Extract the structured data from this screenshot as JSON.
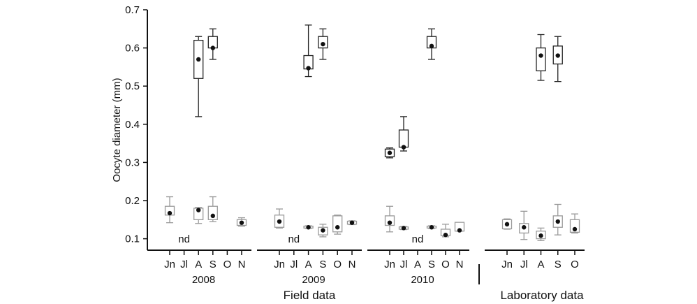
{
  "chart_data": {
    "type": "box",
    "ylabel": "Oocyte diameter (mm)",
    "ylim": [
      0.07,
      0.7
    ],
    "yticks": [
      "0.1",
      "0.2",
      "0.3",
      "0.4",
      "0.5",
      "0.6",
      "0.7"
    ],
    "note_nd": "nd",
    "groups": [
      {
        "id": "2008",
        "label": "2008",
        "section": "field",
        "nd_after": "Jl",
        "months": [
          "Jn",
          "Jl",
          "A",
          "S",
          "O",
          "N"
        ],
        "boxes": [
          {
            "month": "Jn",
            "min": 0.142,
            "q1": 0.162,
            "q3": 0.185,
            "max": 0.21,
            "mean": 0.167,
            "tone": "light"
          },
          {
            "month": "A",
            "min": 0.42,
            "q1": 0.52,
            "q3": 0.62,
            "max": 0.63,
            "mean": 0.57,
            "tone": "dark"
          },
          {
            "month": "A",
            "min": 0.14,
            "q1": 0.15,
            "q3": 0.18,
            "max": 0.182,
            "mean": 0.175,
            "tone": "light"
          },
          {
            "month": "S",
            "min": 0.57,
            "q1": 0.6,
            "q3": 0.63,
            "max": 0.65,
            "mean": 0.6,
            "tone": "dark"
          },
          {
            "month": "S",
            "min": 0.145,
            "q1": 0.15,
            "q3": 0.185,
            "max": 0.21,
            "mean": 0.16,
            "tone": "light"
          },
          {
            "month": "N",
            "min": 0.133,
            "q1": 0.135,
            "q3": 0.15,
            "max": 0.155,
            "mean": 0.142,
            "tone": "light"
          }
        ]
      },
      {
        "id": "2009",
        "label": "2009",
        "section": "field",
        "nd_after": "Jl",
        "months": [
          "Jn",
          "Jl",
          "A",
          "S",
          "O",
          "N"
        ],
        "boxes": [
          {
            "month": "Jn",
            "min": 0.128,
            "q1": 0.13,
            "q3": 0.162,
            "max": 0.178,
            "mean": 0.145,
            "tone": "light"
          },
          {
            "month": "A",
            "min": 0.525,
            "q1": 0.545,
            "q3": 0.58,
            "max": 0.66,
            "mean": 0.547,
            "tone": "dark"
          },
          {
            "month": "A",
            "min": 0.127,
            "q1": 0.128,
            "q3": 0.133,
            "max": 0.134,
            "mean": 0.13,
            "tone": "light"
          },
          {
            "month": "S",
            "min": 0.57,
            "q1": 0.6,
            "q3": 0.63,
            "max": 0.65,
            "mean": 0.61,
            "tone": "dark"
          },
          {
            "month": "S",
            "min": 0.105,
            "q1": 0.11,
            "q3": 0.13,
            "max": 0.138,
            "mean": 0.122,
            "tone": "light"
          },
          {
            "month": "O",
            "min": 0.112,
            "q1": 0.118,
            "q3": 0.16,
            "max": 0.162,
            "mean": 0.13,
            "tone": "light"
          },
          {
            "month": "N",
            "min": 0.137,
            "q1": 0.138,
            "q3": 0.146,
            "max": 0.147,
            "mean": 0.142,
            "tone": "light"
          }
        ]
      },
      {
        "id": "2010",
        "label": "2010",
        "section": "field",
        "nd_after": "A",
        "months": [
          "Jn",
          "Jl",
          "A",
          "S",
          "O",
          "N"
        ],
        "boxes": [
          {
            "month": "Jn",
            "min": 0.312,
            "q1": 0.315,
            "q3": 0.335,
            "max": 0.338,
            "mean": 0.325,
            "tone": "dark"
          },
          {
            "month": "Jn",
            "min": 0.118,
            "q1": 0.135,
            "q3": 0.16,
            "max": 0.185,
            "mean": 0.142,
            "tone": "light"
          },
          {
            "month": "Jl",
            "min": 0.33,
            "q1": 0.34,
            "q3": 0.385,
            "max": 0.42,
            "mean": 0.34,
            "tone": "dark"
          },
          {
            "month": "Jl",
            "min": 0.124,
            "q1": 0.125,
            "q3": 0.131,
            "max": 0.132,
            "mean": 0.128,
            "tone": "light"
          },
          {
            "month": "S",
            "min": 0.57,
            "q1": 0.6,
            "q3": 0.63,
            "max": 0.65,
            "mean": 0.605,
            "tone": "dark"
          },
          {
            "month": "S",
            "min": 0.127,
            "q1": 0.128,
            "q3": 0.133,
            "max": 0.134,
            "mean": 0.13,
            "tone": "light"
          },
          {
            "month": "O",
            "min": 0.105,
            "q1": 0.108,
            "q3": 0.125,
            "max": 0.138,
            "mean": 0.11,
            "tone": "light"
          },
          {
            "month": "N",
            "min": 0.12,
            "q1": 0.12,
            "q3": 0.143,
            "max": 0.143,
            "mean": 0.122,
            "tone": "light"
          }
        ]
      },
      {
        "id": "lab",
        "label": "",
        "section": "lab",
        "nd_after": null,
        "months": [
          "Jn",
          "Jl",
          "A",
          "S",
          "O"
        ],
        "boxes": [
          {
            "month": "A",
            "min": 0.515,
            "q1": 0.54,
            "q3": 0.6,
            "max": 0.635,
            "mean": 0.58,
            "tone": "dark"
          },
          {
            "month": "S",
            "min": 0.512,
            "q1": 0.558,
            "q3": 0.605,
            "max": 0.63,
            "mean": 0.58,
            "tone": "dark"
          },
          {
            "month": "Jn",
            "min": 0.125,
            "q1": 0.126,
            "q3": 0.15,
            "max": 0.152,
            "mean": 0.138,
            "tone": "light"
          },
          {
            "month": "Jl",
            "min": 0.098,
            "q1": 0.115,
            "q3": 0.14,
            "max": 0.172,
            "mean": 0.13,
            "tone": "light"
          },
          {
            "month": "A",
            "min": 0.095,
            "q1": 0.1,
            "q3": 0.12,
            "max": 0.128,
            "mean": 0.108,
            "tone": "light"
          },
          {
            "month": "S",
            "min": 0.11,
            "q1": 0.13,
            "q3": 0.16,
            "max": 0.19,
            "mean": 0.145,
            "tone": "light"
          },
          {
            "month": "O",
            "min": 0.115,
            "q1": 0.117,
            "q3": 0.15,
            "max": 0.165,
            "mean": 0.125,
            "tone": "light"
          }
        ]
      }
    ],
    "section_labels": {
      "field": "Field data",
      "lab": "Laboratory data"
    },
    "colors": {
      "dark_box": "#222222",
      "light_box": "#9a9a9a",
      "mean_dot": "#111111",
      "axis": "#111111"
    }
  }
}
